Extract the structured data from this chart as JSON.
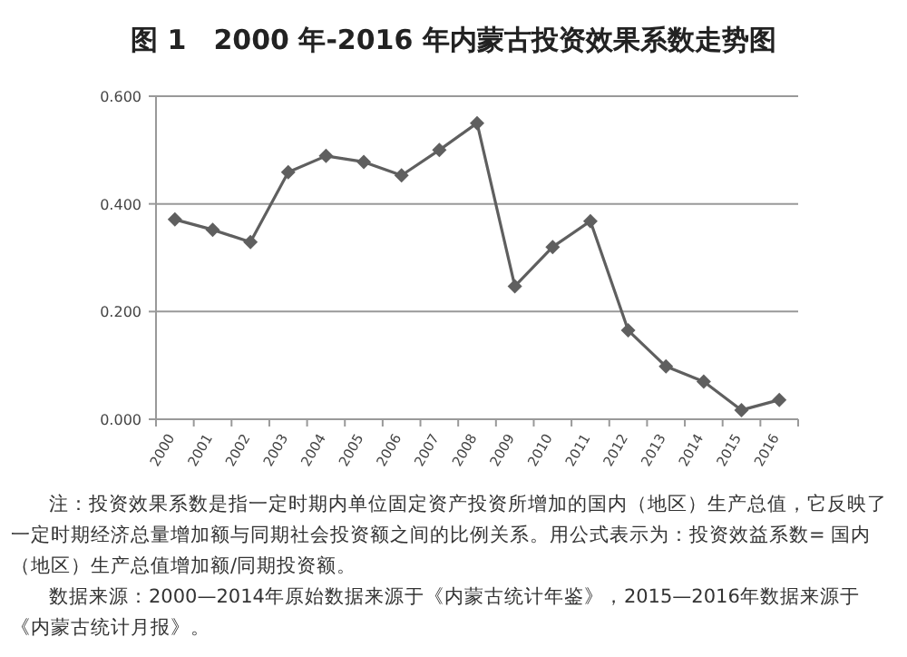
{
  "chart_data": {
    "type": "line",
    "title": "图 1　2000 年-2016 年内蒙古投资效果系数走势图",
    "categories": [
      "2000",
      "2001",
      "2002",
      "2003",
      "2004",
      "2005",
      "2006",
      "2007",
      "2008",
      "2009",
      "2010",
      "2011",
      "2012",
      "2013",
      "2014",
      "2015",
      "2016"
    ],
    "series": [
      {
        "color": "#5f5f5f",
        "values": [
          0.371,
          0.352,
          0.329,
          0.459,
          0.489,
          0.478,
          0.453,
          0.5,
          0.55,
          0.247,
          0.32,
          0.368,
          0.165,
          0.098,
          0.07,
          0.017,
          0.036
        ]
      }
    ],
    "ylim": [
      0,
      0.6
    ],
    "yticks": [
      {
        "value": 0,
        "label": "0.000"
      },
      {
        "value": 0.2,
        "label": "0.200"
      },
      {
        "value": 0.4,
        "label": "0.400"
      },
      {
        "value": 0.6,
        "label": "0.600"
      }
    ],
    "grid": "y",
    "marker": "diamond",
    "line_style": "solid",
    "annotations": [
      "注：投资效果系数是指一定时期内单位固定资产投资所增加的国内（地区）生产总值，它反映了一定时期经济总量增加额与同期社会投资额之间的比例关系。用公式表示为：投资效益系数= 国内（地区）生产总值增加额/同期投资额。",
      "数据来源：2000—2014年原始数据来源于《内蒙古统计年鉴》，2015—2016年数据来源于《内蒙古统计月报》。"
    ]
  }
}
